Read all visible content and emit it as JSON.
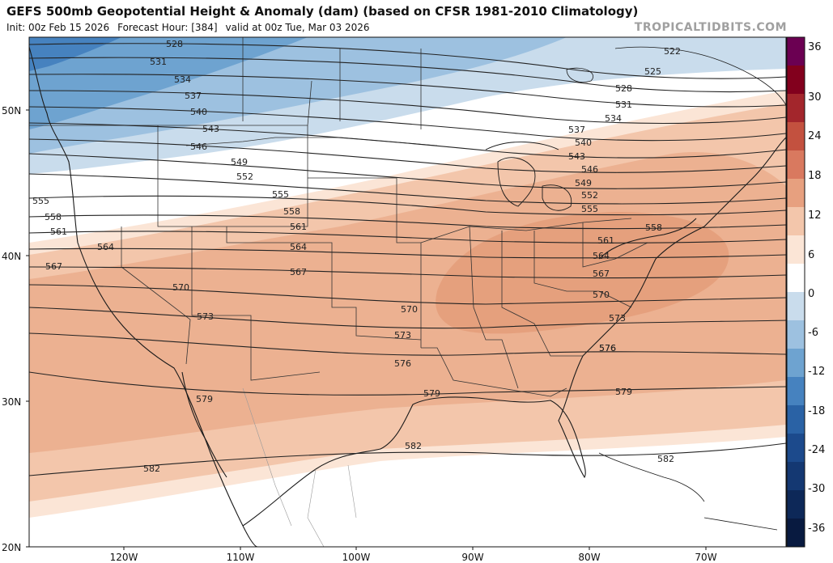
{
  "header": {
    "title": "GEFS 500mb Geopotential Height & Anomaly (dam) (based on CFSR 1981-2010 Climatology)",
    "init": "Init: 00z Feb 15 2026",
    "forecast_hour": "Forecast Hour: [384]",
    "valid": "valid at 00z Tue, Mar 03 2026",
    "brand": "TROPICALTIDBITS.COM"
  },
  "axes": {
    "lat_labels": [
      "50N",
      "40N",
      "30N",
      "20N"
    ],
    "lon_labels": [
      "120W",
      "110W",
      "100W",
      "90W",
      "80W",
      "70W"
    ]
  },
  "colorbar": {
    "labels": [
      "36",
      "30",
      "24",
      "18",
      "12",
      "6",
      "0",
      "-6",
      "-12",
      "-18",
      "-24",
      "-30",
      "-36"
    ],
    "colors": [
      "#6b0052",
      "#82001d",
      "#a3262c",
      "#c3513f",
      "#d9795f",
      "#e7a07f",
      "#f3c6ab",
      "#fbe5d6",
      "#ffffff",
      "#c9dcec",
      "#9dc1e0",
      "#6ea3d0",
      "#4682bf",
      "#2a62a5",
      "#1c4a8c",
      "#143872",
      "#0d2858",
      "#081a40"
    ]
  },
  "contour_labels": [
    "522",
    "525",
    "528",
    "531",
    "534",
    "537",
    "540",
    "543",
    "546",
    "549",
    "552",
    "555",
    "558",
    "561",
    "564",
    "567",
    "570",
    "573",
    "576",
    "579",
    "582"
  ],
  "contour_labels_left": [
    "528",
    "531",
    "534",
    "537",
    "540",
    "543",
    "546",
    "549",
    "552",
    "555",
    "555",
    "558",
    "558",
    "561",
    "561",
    "564",
    "564",
    "567",
    "567",
    "570",
    "570",
    "573",
    "573",
    "576",
    "576",
    "579",
    "579",
    "582",
    "582"
  ]
}
